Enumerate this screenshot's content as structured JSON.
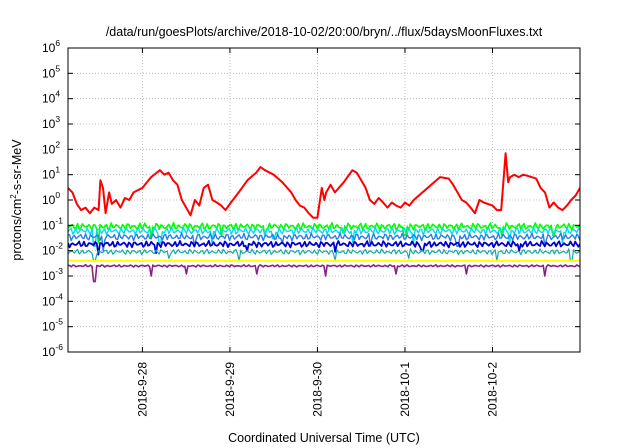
{
  "chart_data": {
    "type": "line",
    "title": "/data/run/goesPlots/archive/2018-10-02/20:00/bryn/../flux/5daysMoonFluxes.txt",
    "xlabel": "Coordinated Universal Time (UTC)",
    "ylabel": {
      "base": "protons/cm",
      "sup": "2",
      "rest": "-s-sr-MeV"
    },
    "x_unit": "days since 2018-09-27 00:00 UTC",
    "xlim": [
      0.15,
      6.0
    ],
    "x_ticks": [
      {
        "x": 1,
        "label": "2018-9-28"
      },
      {
        "x": 2,
        "label": "2018-9-29"
      },
      {
        "x": 3,
        "label": "2018-9-30"
      },
      {
        "x": 4,
        "label": "2018-10-1"
      },
      {
        "x": 5,
        "label": "2018-10-2"
      }
    ],
    "y_scale": "log",
    "ylim_exp": [
      -6,
      6
    ],
    "y_ticks": [
      {
        "exp": 6,
        "label": "10",
        "sup": "6"
      },
      {
        "exp": 5,
        "label": "10",
        "sup": "5"
      },
      {
        "exp": 4,
        "label": "10",
        "sup": "4"
      },
      {
        "exp": 3,
        "label": "10",
        "sup": "3"
      },
      {
        "exp": 2,
        "label": "10",
        "sup": "2"
      },
      {
        "exp": 1,
        "label": "10",
        "sup": "1"
      },
      {
        "exp": 0,
        "label": "10",
        "sup": "0"
      },
      {
        "exp": -1,
        "label": "10",
        "sup": "-1"
      },
      {
        "exp": -2,
        "label": "10",
        "sup": "-2"
      },
      {
        "exp": -3,
        "label": "10",
        "sup": "-3"
      },
      {
        "exp": -4,
        "label": "10",
        "sup": "-4"
      },
      {
        "exp": -5,
        "label": "10",
        "sup": "-5"
      },
      {
        "exp": -6,
        "label": "10",
        "sup": "-6"
      }
    ],
    "grid": true,
    "series": [
      {
        "color": "#ff0000",
        "width": 2,
        "points": [
          [
            0.15,
            3
          ],
          [
            0.2,
            2
          ],
          [
            0.25,
            0.7
          ],
          [
            0.3,
            0.4
          ],
          [
            0.35,
            0.5
          ],
          [
            0.4,
            0.3
          ],
          [
            0.45,
            0.5
          ],
          [
            0.5,
            0.4
          ],
          [
            0.52,
            6
          ],
          [
            0.55,
            3
          ],
          [
            0.58,
            0.3
          ],
          [
            0.62,
            2
          ],
          [
            0.65,
            0.7
          ],
          [
            0.7,
            1
          ],
          [
            0.75,
            0.5
          ],
          [
            0.8,
            1.2
          ],
          [
            0.85,
            1
          ],
          [
            0.9,
            2
          ],
          [
            1.0,
            3
          ],
          [
            1.1,
            8
          ],
          [
            1.2,
            15
          ],
          [
            1.25,
            10
          ],
          [
            1.3,
            12
          ],
          [
            1.35,
            6
          ],
          [
            1.4,
            4
          ],
          [
            1.45,
            1
          ],
          [
            1.5,
            0.5
          ],
          [
            1.55,
            0.25
          ],
          [
            1.6,
            1
          ],
          [
            1.65,
            0.6
          ],
          [
            1.7,
            3
          ],
          [
            1.75,
            4
          ],
          [
            1.8,
            1
          ],
          [
            1.85,
            0.8
          ],
          [
            1.9,
            0.6
          ],
          [
            1.95,
            0.4
          ],
          [
            2.0,
            0.7
          ],
          [
            2.1,
            2
          ],
          [
            2.2,
            6
          ],
          [
            2.3,
            12
          ],
          [
            2.35,
            20
          ],
          [
            2.4,
            15
          ],
          [
            2.5,
            10
          ],
          [
            2.6,
            5
          ],
          [
            2.7,
            2
          ],
          [
            2.75,
            1
          ],
          [
            2.8,
            0.6
          ],
          [
            2.85,
            0.5
          ],
          [
            2.9,
            0.3
          ],
          [
            2.95,
            0.2
          ],
          [
            3.0,
            0.2
          ],
          [
            3.05,
            3
          ],
          [
            3.08,
            1
          ],
          [
            3.1,
            2
          ],
          [
            3.15,
            4
          ],
          [
            3.2,
            2
          ],
          [
            3.3,
            5
          ],
          [
            3.4,
            15
          ],
          [
            3.45,
            12
          ],
          [
            3.5,
            6
          ],
          [
            3.55,
            3
          ],
          [
            3.6,
            1
          ],
          [
            3.65,
            0.7
          ],
          [
            3.7,
            1.2
          ],
          [
            3.75,
            0.8
          ],
          [
            3.8,
            0.5
          ],
          [
            3.85,
            0.8
          ],
          [
            3.9,
            0.6
          ],
          [
            3.95,
            0.5
          ],
          [
            4.0,
            0.8
          ],
          [
            4.05,
            0.6
          ],
          [
            4.1,
            1
          ],
          [
            4.2,
            2
          ],
          [
            4.3,
            4
          ],
          [
            4.4,
            8
          ],
          [
            4.5,
            7
          ],
          [
            4.55,
            4
          ],
          [
            4.6,
            2
          ],
          [
            4.65,
            1
          ],
          [
            4.7,
            0.8
          ],
          [
            4.75,
            0.5
          ],
          [
            4.8,
            0.3
          ],
          [
            4.85,
            1
          ],
          [
            4.9,
            0.8
          ],
          [
            5.0,
            0.6
          ],
          [
            5.05,
            0.4
          ],
          [
            5.1,
            0.4
          ],
          [
            5.15,
            70
          ],
          [
            5.18,
            5
          ],
          [
            5.2,
            8
          ],
          [
            5.25,
            10
          ],
          [
            5.3,
            8
          ],
          [
            5.35,
            10
          ],
          [
            5.4,
            9
          ],
          [
            5.5,
            7
          ],
          [
            5.55,
            3
          ],
          [
            5.6,
            2
          ],
          [
            5.65,
            0.5
          ],
          [
            5.7,
            0.8
          ],
          [
            5.75,
            0.5
          ],
          [
            5.8,
            0.4
          ],
          [
            5.85,
            0.6
          ],
          [
            5.9,
            1
          ],
          [
            5.95,
            1.5
          ],
          [
            6.0,
            3
          ],
          [
            6.1,
            3.5
          ],
          [
            6.2,
            4
          ],
          [
            6.3,
            4
          ]
        ]
      },
      {
        "color": "#00ff00",
        "width": 1.6,
        "base": 0.09,
        "amp": 0.16,
        "spikes": [
          [
            0.5,
            0.02
          ],
          [
            1.1,
            0.03
          ],
          [
            1.9,
            0.04
          ],
          [
            2.4,
            0.04
          ],
          [
            3.3,
            0.05
          ],
          [
            4.0,
            0.04
          ],
          [
            5.1,
            0.04
          ],
          [
            5.7,
            0.04
          ]
        ]
      },
      {
        "color": "#00ddee",
        "width": 1.4,
        "base": 0.06,
        "amp": 0.16,
        "spikes": [
          [
            0.45,
            0.015
          ],
          [
            1.2,
            0.02
          ],
          [
            1.8,
            0.02
          ],
          [
            2.5,
            0.03
          ],
          [
            3.4,
            0.02
          ],
          [
            4.1,
            0.02
          ],
          [
            5.2,
            0.02
          ],
          [
            5.8,
            0.02
          ]
        ]
      },
      {
        "color": "#2a7de8",
        "width": 1.4,
        "base": 0.035,
        "amp": 0.16,
        "spikes": [
          [
            0.55,
            0.01
          ],
          [
            1.6,
            0.015
          ],
          [
            2.6,
            0.02
          ],
          [
            3.6,
            0.015
          ],
          [
            4.6,
            0.015
          ],
          [
            5.6,
            0.015
          ]
        ]
      },
      {
        "color": "#0000cc",
        "width": 1.8,
        "base": 0.018,
        "amp": 0.14,
        "spikes": [
          [
            0.5,
            0.007
          ],
          [
            1.15,
            0.008
          ],
          [
            2.2,
            0.01
          ],
          [
            3.2,
            0.009
          ],
          [
            4.2,
            0.01
          ],
          [
            5.3,
            0.01
          ]
        ]
      },
      {
        "color": "#11aaaa",
        "width": 1.2,
        "base": 0.009,
        "amp": 0.12,
        "spikes": [
          [
            0.45,
            0.004
          ],
          [
            1.3,
            0.005
          ],
          [
            2.1,
            0.004
          ],
          [
            3.2,
            0.004
          ],
          [
            4.05,
            0.005
          ],
          [
            5.05,
            0.004
          ],
          [
            5.9,
            0.004
          ]
        ]
      },
      {
        "color": "#ffff00",
        "width": 2,
        "base": 0.004,
        "amp": 0.02,
        "spikes": []
      },
      {
        "color": "#882288",
        "width": 1.6,
        "base": 0.0025,
        "amp": 0.05,
        "spikes": [
          [
            0.45,
            0.0006
          ],
          [
            1.1,
            0.001
          ],
          [
            1.5,
            0.0012
          ],
          [
            2.3,
            0.0012
          ],
          [
            3.1,
            0.001
          ],
          [
            3.9,
            0.0012
          ],
          [
            4.7,
            0.0012
          ],
          [
            5.6,
            0.001
          ]
        ]
      }
    ]
  }
}
